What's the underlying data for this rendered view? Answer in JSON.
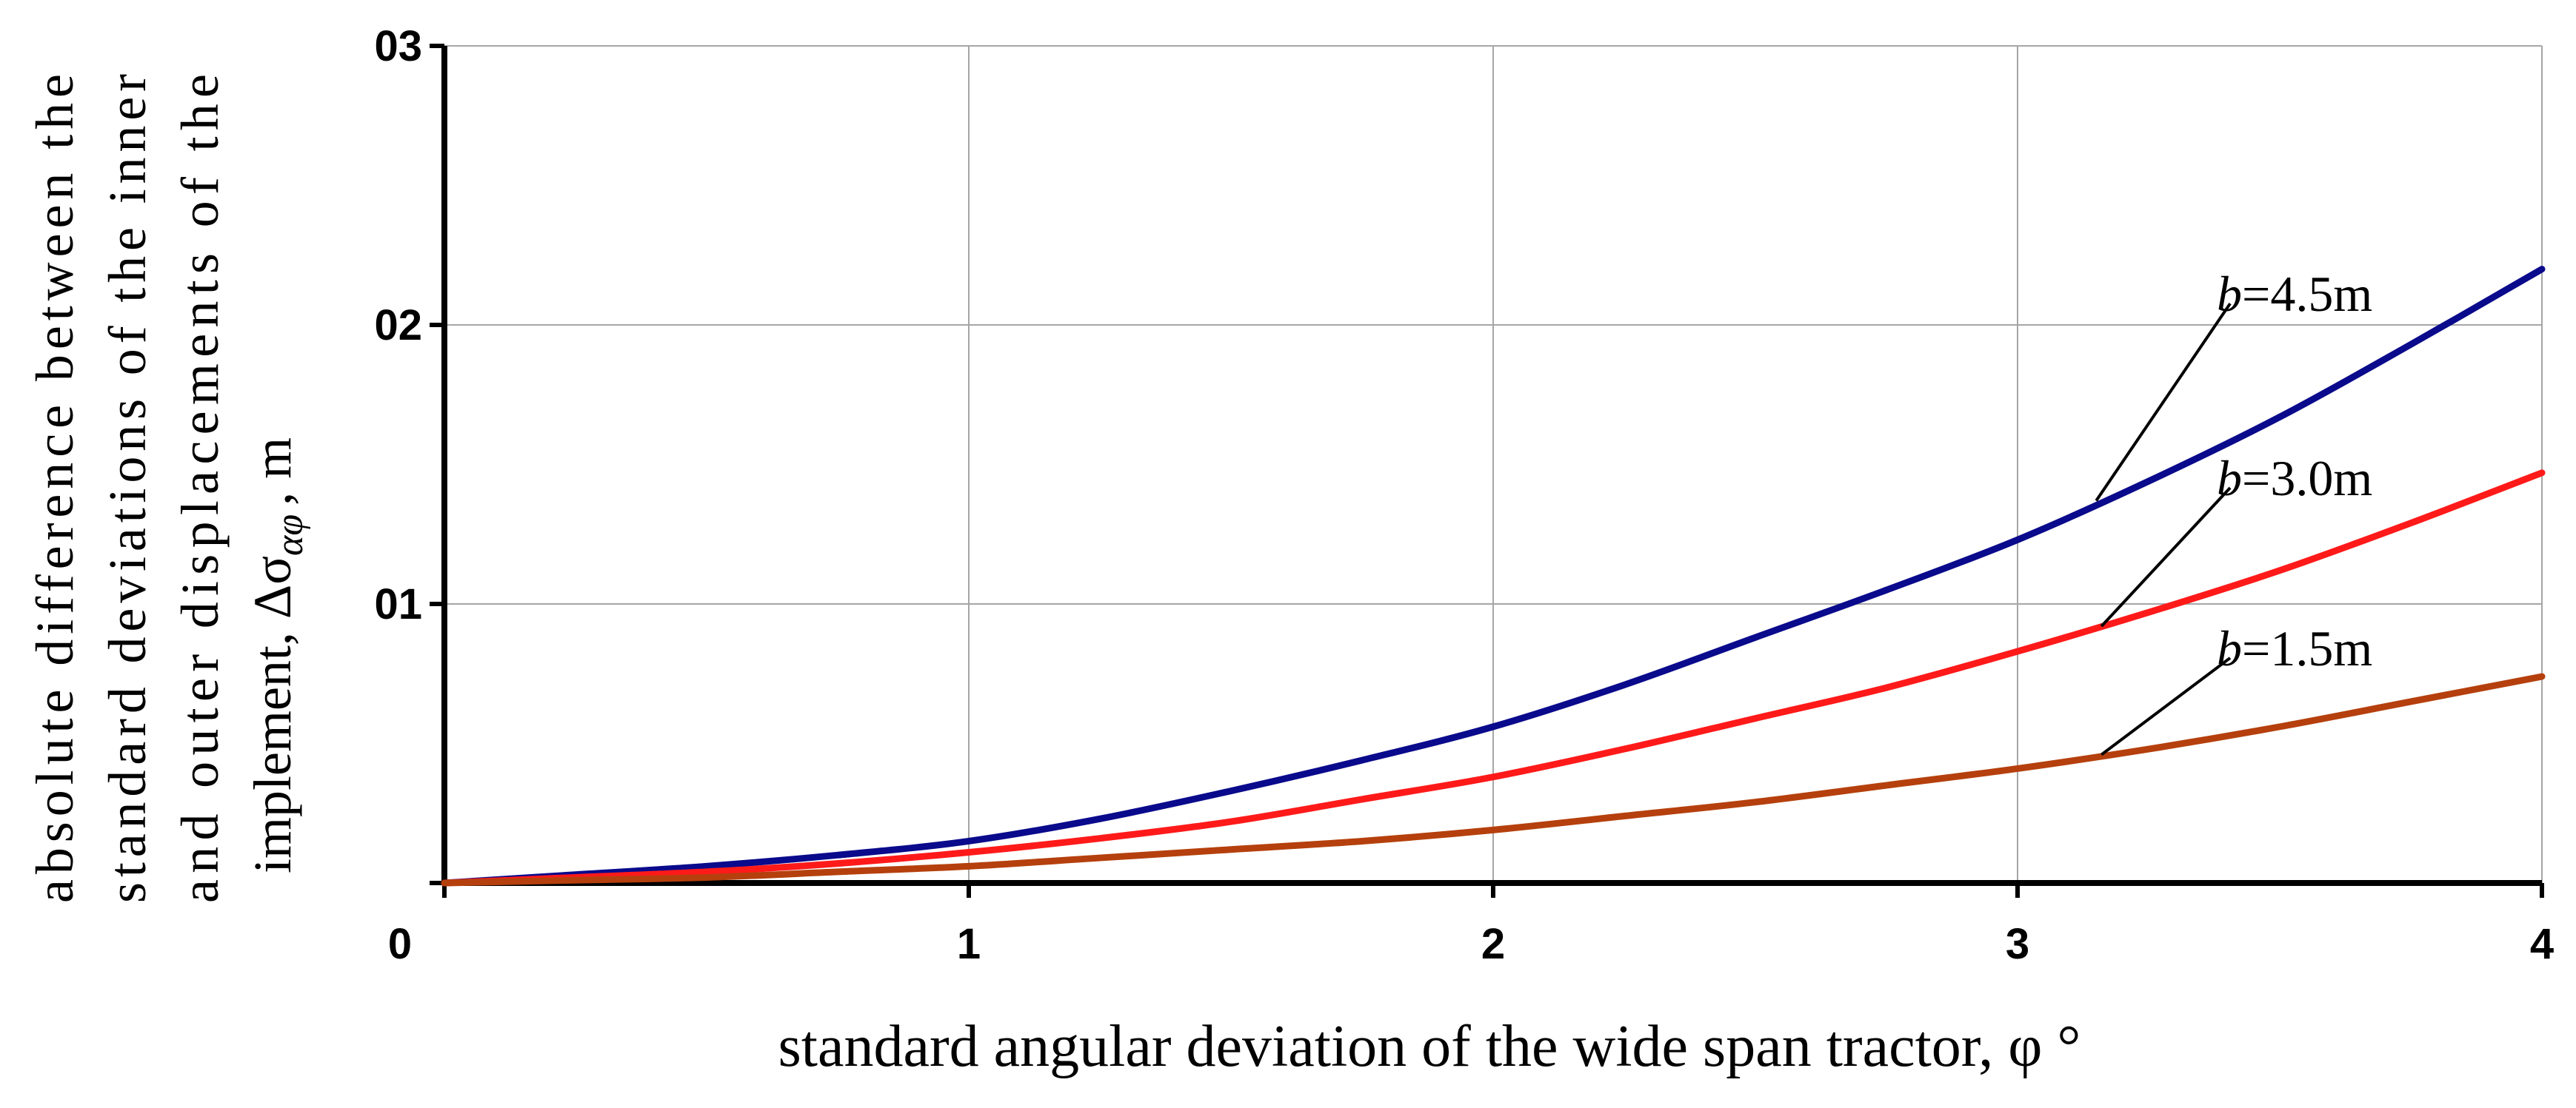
{
  "chart_data": {
    "type": "line",
    "xlabel": "standard angular deviation of the wide span tractor, φ °",
    "ylabel_lines": [
      "absolute difference between the",
      "standard deviations of the inner",
      "and outer displacements of the",
      "implement, Δσ",
      "αφ",
      ", m"
    ],
    "xlim": [
      0,
      4
    ],
    "ylim": [
      0,
      0.03
    ],
    "x_ticks": [
      {
        "value": 0,
        "label": "0"
      },
      {
        "value": 1,
        "label": "1"
      },
      {
        "value": 2,
        "label": "2"
      },
      {
        "value": 3,
        "label": "3"
      },
      {
        "value": 4,
        "label": "4"
      }
    ],
    "y_ticks": [
      {
        "value": 0.01,
        "label": "01"
      },
      {
        "value": 0.02,
        "label": "02"
      },
      {
        "value": 0.03,
        "label": "03"
      }
    ],
    "grid": true,
    "x": [
      0,
      0.25,
      0.5,
      0.75,
      1.0,
      1.25,
      1.5,
      1.75,
      2.0,
      2.25,
      2.5,
      2.75,
      3.0,
      3.25,
      3.5,
      3.75,
      4.0
    ],
    "series": [
      {
        "name": "b=4.5m",
        "prefix": "b",
        "suffix": "=4.5m",
        "color": "#0a0a8c",
        "label_at": [
          3.38,
          0.0205
        ],
        "leader_to": [
          3.15,
          0.0137
        ],
        "values": [
          0,
          0.0003,
          0.0006,
          0.001,
          0.0015,
          0.0023,
          0.0033,
          0.0044,
          0.0056,
          0.0071,
          0.0088,
          0.0105,
          0.0123,
          0.0144,
          0.0167,
          0.0193,
          0.022
        ]
      },
      {
        "name": "b=3.0m",
        "prefix": "b",
        "suffix": "=3.0m",
        "color": "#ff1a1a",
        "label_at": [
          3.38,
          0.0139
        ],
        "leader_to": [
          3.16,
          0.0092
        ],
        "values": [
          0,
          0.0002,
          0.0004,
          0.0007,
          0.0011,
          0.0016,
          0.0022,
          0.003,
          0.0038,
          0.0048,
          0.0059,
          0.007,
          0.0083,
          0.0097,
          0.0112,
          0.0129,
          0.0147
        ]
      },
      {
        "name": "b=1.5m",
        "prefix": "b",
        "suffix": "=1.5m",
        "color": "#b5400d",
        "label_at": [
          3.38,
          0.0078
        ],
        "leader_to": [
          3.16,
          0.0046
        ],
        "values": [
          0,
          0.0001,
          0.0002,
          0.0004,
          0.0006,
          0.0009,
          0.0012,
          0.0015,
          0.0019,
          0.0024,
          0.0029,
          0.0035,
          0.0041,
          0.0048,
          0.0056,
          0.0065,
          0.0074
        ]
      }
    ]
  }
}
